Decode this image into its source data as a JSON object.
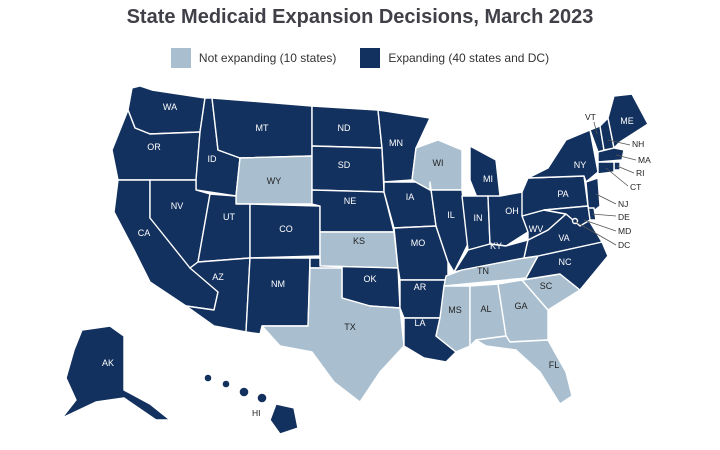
{
  "title": "State Medicaid Expansion Decisions, March 2023",
  "legend": {
    "not_expanding": "Not expanding (10 states)",
    "expanding": "Expanding (40 states and DC)"
  },
  "colors": {
    "expanding": "#13315e",
    "not_expanding": "#a9bfd0",
    "background": "#ffffff",
    "title": "#404048"
  },
  "states": {
    "WA": {
      "label": "WA",
      "status": "expanding"
    },
    "OR": {
      "label": "OR",
      "status": "expanding"
    },
    "CA": {
      "label": "CA",
      "status": "expanding"
    },
    "ID": {
      "label": "ID",
      "status": "expanding"
    },
    "NV": {
      "label": "NV",
      "status": "expanding"
    },
    "MT": {
      "label": "MT",
      "status": "expanding"
    },
    "WY": {
      "label": "WY",
      "status": "not_expanding"
    },
    "UT": {
      "label": "UT",
      "status": "expanding"
    },
    "AZ": {
      "label": "AZ",
      "status": "expanding"
    },
    "CO": {
      "label": "CO",
      "status": "expanding"
    },
    "NM": {
      "label": "NM",
      "status": "expanding"
    },
    "ND": {
      "label": "ND",
      "status": "expanding"
    },
    "SD": {
      "label": "SD",
      "status": "expanding"
    },
    "NE": {
      "label": "NE",
      "status": "expanding"
    },
    "KS": {
      "label": "KS",
      "status": "not_expanding"
    },
    "OK": {
      "label": "OK",
      "status": "expanding"
    },
    "TX": {
      "label": "TX",
      "status": "not_expanding"
    },
    "MN": {
      "label": "MN",
      "status": "expanding"
    },
    "IA": {
      "label": "IA",
      "status": "expanding"
    },
    "MO": {
      "label": "MO",
      "status": "expanding"
    },
    "AR": {
      "label": "AR",
      "status": "expanding"
    },
    "LA": {
      "label": "LA",
      "status": "expanding"
    },
    "WI": {
      "label": "WI",
      "status": "not_expanding"
    },
    "IL": {
      "label": "IL",
      "status": "expanding"
    },
    "MI": {
      "label": "MI",
      "status": "expanding"
    },
    "IN": {
      "label": "IN",
      "status": "expanding"
    },
    "OH": {
      "label": "OH",
      "status": "expanding"
    },
    "KY": {
      "label": "KY",
      "status": "expanding"
    },
    "TN": {
      "label": "TN",
      "status": "not_expanding"
    },
    "MS": {
      "label": "MS",
      "status": "not_expanding"
    },
    "AL": {
      "label": "AL",
      "status": "not_expanding"
    },
    "GA": {
      "label": "GA",
      "status": "not_expanding"
    },
    "FL": {
      "label": "FL",
      "status": "not_expanding"
    },
    "SC": {
      "label": "SC",
      "status": "not_expanding"
    },
    "NC": {
      "label": "NC",
      "status": "expanding"
    },
    "VA": {
      "label": "VA",
      "status": "expanding"
    },
    "WV": {
      "label": "WV",
      "status": "expanding"
    },
    "PA": {
      "label": "PA",
      "status": "expanding"
    },
    "NY": {
      "label": "NY",
      "status": "expanding"
    },
    "VT": {
      "label": "VT",
      "status": "expanding"
    },
    "NH": {
      "label": "NH",
      "status": "expanding"
    },
    "ME": {
      "label": "ME",
      "status": "expanding"
    },
    "MA": {
      "label": "MA",
      "status": "expanding"
    },
    "RI": {
      "label": "RI",
      "status": "expanding"
    },
    "CT": {
      "label": "CT",
      "status": "expanding"
    },
    "NJ": {
      "label": "NJ",
      "status": "expanding"
    },
    "DE": {
      "label": "DE",
      "status": "expanding"
    },
    "MD": {
      "label": "MD",
      "status": "expanding"
    },
    "DC": {
      "label": "DC",
      "status": "expanding"
    },
    "AK": {
      "label": "AK",
      "status": "expanding"
    },
    "HI": {
      "label": "HI",
      "status": "expanding"
    }
  }
}
